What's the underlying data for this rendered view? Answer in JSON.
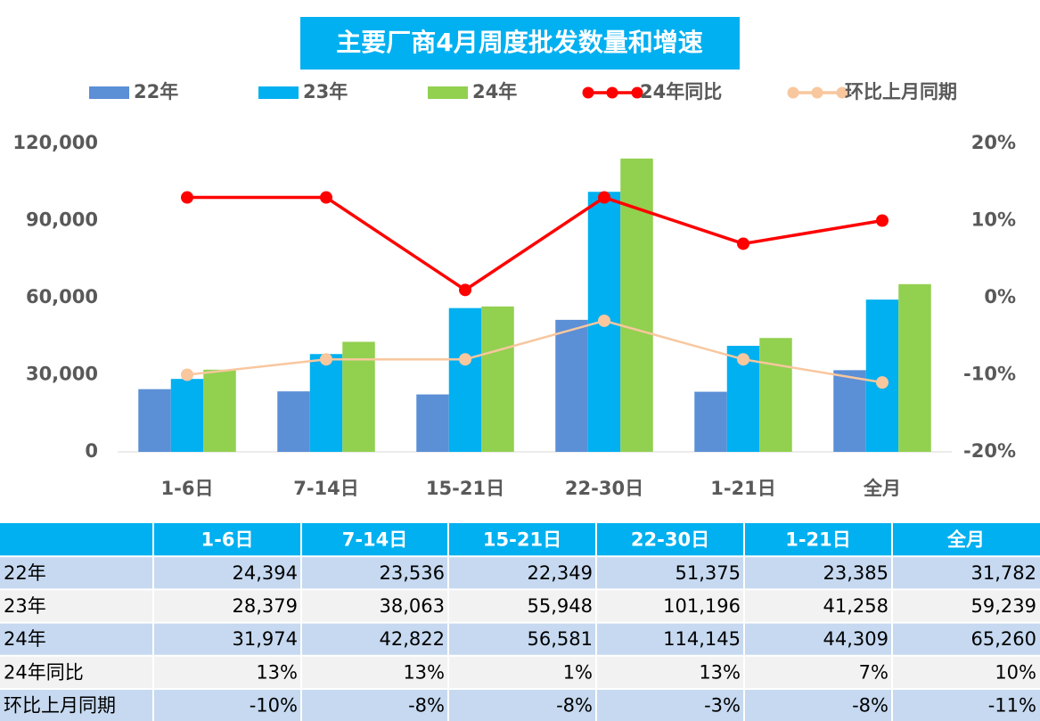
{
  "chart_data": {
    "type": "bar",
    "title": "主要厂商4月周度批发数量和增速",
    "categories": [
      "1-6日",
      "7-14日",
      "15-21日",
      "22-30日",
      "1-21日",
      "全月"
    ],
    "series": [
      {
        "name": "22年",
        "type": "bar",
        "color": "#5b8fd6",
        "values": [
          24394,
          23536,
          22349,
          51375,
          23385,
          31782
        ],
        "value_labels": [
          "24,394",
          "23,536",
          "22,349",
          "51,375",
          "23,385",
          "31,782"
        ]
      },
      {
        "name": "23年",
        "type": "bar",
        "color": "#00b0f0",
        "values": [
          28379,
          38063,
          55948,
          101196,
          41258,
          59239
        ],
        "value_labels": [
          "28,379",
          "38,063",
          "55,948",
          "101,196",
          "41,258",
          "59,239"
        ]
      },
      {
        "name": "24年",
        "type": "bar",
        "color": "#92d050",
        "values": [
          31974,
          42822,
          56581,
          114145,
          44309,
          65260
        ],
        "value_labels": [
          "31,974",
          "42,822",
          "56,581",
          "114,145",
          "44,309",
          "65,260"
        ]
      },
      {
        "name": "24年同比",
        "type": "line",
        "axis": "y2",
        "color": "#ff0000",
        "values": [
          13,
          13,
          1,
          13,
          7,
          10
        ],
        "value_labels": [
          "13%",
          "13%",
          "1%",
          "13%",
          "7%",
          "10%"
        ]
      },
      {
        "name": "环比上月同期",
        "type": "line",
        "axis": "y2",
        "color": "#f8c79e",
        "values": [
          -10,
          -8,
          -8,
          -3,
          -8,
          -11
        ],
        "value_labels": [
          "-10%",
          "-8%",
          "-8%",
          "-3%",
          "-8%",
          "-11%"
        ]
      }
    ],
    "ylim": [
      0,
      120000
    ],
    "yticks": [
      0,
      {
        "value": 30000,
        "label": "30,000"
      },
      {
        "value": 60000,
        "label": "60,000"
      },
      {
        "value": 90000,
        "label": "90,000"
      },
      {
        "value": 120000,
        "label": "120,000"
      }
    ],
    "y2lim": [
      -20,
      20
    ],
    "y2ticks": [
      {
        "value": -20,
        "label": "-20%"
      },
      {
        "value": -10,
        "label": "-10%"
      },
      {
        "value": 0,
        "label": "0%"
      },
      {
        "value": 10,
        "label": "10%"
      },
      {
        "value": 20,
        "label": "20%"
      }
    ],
    "grid": false,
    "legend": "top"
  }
}
